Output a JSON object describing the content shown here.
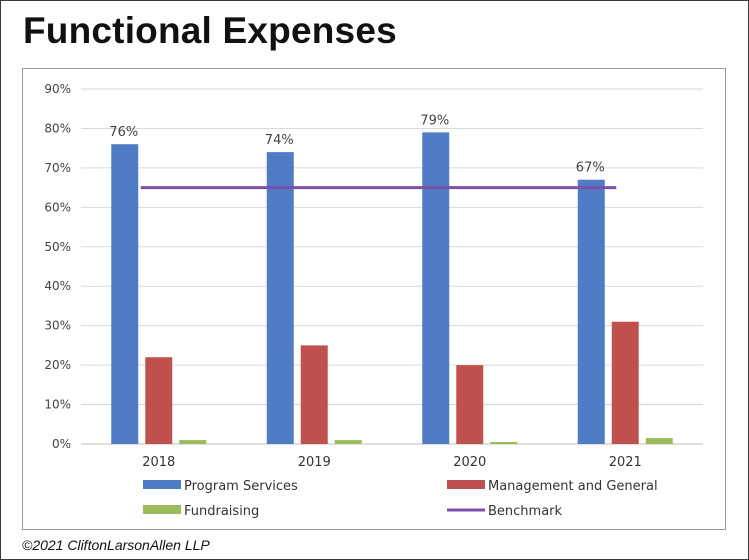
{
  "title": "Functional Expenses",
  "copyright": "©2021 CliftonLarsonAllen LLP",
  "chart_data": {
    "type": "bar",
    "categories": [
      "2018",
      "2019",
      "2020",
      "2021"
    ],
    "series": [
      {
        "name": "Program Services",
        "color": "#4f7cc4",
        "values": [
          76,
          74,
          79,
          67
        ],
        "labels": [
          "76%",
          "74%",
          "79%",
          "67%"
        ]
      },
      {
        "name": "Management and General",
        "color": "#c0504d",
        "values": [
          22,
          25,
          20,
          31
        ]
      },
      {
        "name": "Fundraising",
        "color": "#9bbb59",
        "values": [
          1,
          1,
          0.5,
          1.5
        ]
      }
    ],
    "benchmark": {
      "name": "Benchmark",
      "color": "#7d4fa8",
      "value": 65
    },
    "ylim": [
      0,
      90
    ],
    "yticks": [
      "0%",
      "10%",
      "20%",
      "30%",
      "40%",
      "50%",
      "60%",
      "70%",
      "80%",
      "90%"
    ],
    "grid": true,
    "legend": "bottom"
  }
}
